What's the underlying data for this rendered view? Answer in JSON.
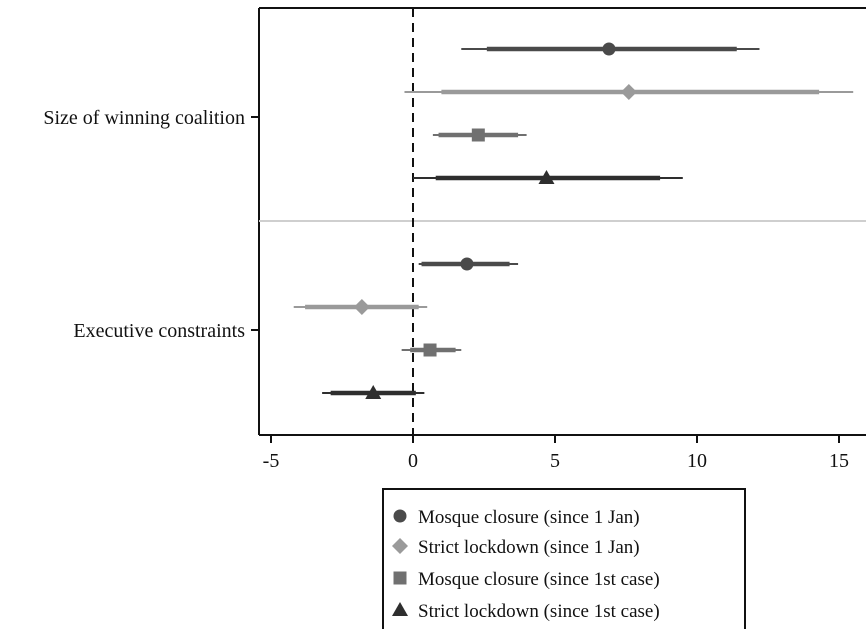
{
  "chart_data": {
    "type": "coefficient-plot",
    "title": "",
    "xlabel": "",
    "ylabel": "",
    "xlim": [
      -5.5,
      15.5
    ],
    "x_ticks": [
      -5,
      0,
      5,
      10,
      15
    ],
    "x_tick_labels": [
      "-5",
      "0",
      "5",
      "10",
      "15"
    ],
    "reference_line": 0,
    "grid": false,
    "legend_position": "bottom",
    "groups": [
      {
        "label": "Size of winning coalition",
        "estimates": [
          {
            "series": "Mosque closure (since 1 Jan)",
            "point": 6.9,
            "ci90": [
              2.6,
              11.4
            ],
            "ci95": [
              1.7,
              12.2
            ]
          },
          {
            "series": "Strict lockdown (since 1 Jan)",
            "point": 7.6,
            "ci90": [
              1.0,
              14.3
            ],
            "ci95": [
              -0.3,
              15.5
            ]
          },
          {
            "series": "Mosque closure (since 1st case)",
            "point": 2.3,
            "ci90": [
              0.9,
              3.7
            ],
            "ci95": [
              0.7,
              4.0
            ]
          },
          {
            "series": "Strict lockdown (since 1st case)",
            "point": 4.7,
            "ci90": [
              0.8,
              8.7
            ],
            "ci95": [
              0.0,
              9.5
            ]
          }
        ]
      },
      {
        "label": "Executive constraints",
        "estimates": [
          {
            "series": "Mosque closure (since 1 Jan)",
            "point": 1.9,
            "ci90": [
              0.3,
              3.4
            ],
            "ci95": [
              0.2,
              3.7
            ]
          },
          {
            "series": "Strict lockdown (since 1 Jan)",
            "point": -1.8,
            "ci90": [
              -3.8,
              0.2
            ],
            "ci95": [
              -4.2,
              0.5
            ]
          },
          {
            "series": "Mosque closure (since 1st case)",
            "point": 0.6,
            "ci90": [
              -0.1,
              1.5
            ],
            "ci95": [
              -0.4,
              1.7
            ]
          },
          {
            "series": "Strict lockdown (since 1st case)",
            "point": -1.4,
            "ci90": [
              -2.9,
              0.1
            ],
            "ci95": [
              -3.2,
              0.4
            ]
          }
        ]
      }
    ],
    "series": [
      {
        "name": "Mosque closure (since 1 Jan)",
        "marker": "circle",
        "color": "#4a4a4a"
      },
      {
        "name": "Strict lockdown (since 1 Jan)",
        "marker": "diamond",
        "color": "#9a9a9a"
      },
      {
        "name": "Mosque closure (since 1st case)",
        "marker": "square",
        "color": "#707070"
      },
      {
        "name": "Strict lockdown (since 1st case)",
        "marker": "triangle",
        "color": "#2e2e2e"
      }
    ],
    "colors": {
      "axis": "#111111",
      "separator": "#cfcfcf",
      "zero_line": "#111111"
    }
  }
}
